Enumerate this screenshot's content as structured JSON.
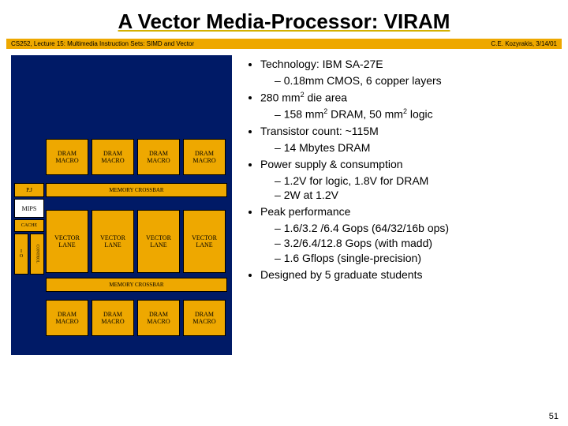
{
  "title": "A Vector Media-Processor: VIRAM",
  "subtitle_left": "CS252, Lecture 15: Multimedia Instruction Sets: SIMD and Vector",
  "subtitle_right": "C.E. Kozyrakis, 3/14/01",
  "diagram": {
    "dram_macro": "DRAM\nMACRO",
    "pj": "P.J",
    "mips": "MIPS",
    "cache": "CACHE",
    "io": "I\nO",
    "control": "CONTROL",
    "memxbar": "MEMORY CROSSBAR",
    "vlane": "VECTOR\nLANE"
  },
  "bullets": {
    "b1": "Technology: IBM SA-27E",
    "b1a": "0.18mm CMOS, 6 copper layers",
    "b2": " 280 mm",
    "b2_sup": "2",
    "b2_tail": " die area",
    "b2a": "158 mm",
    "b2a_sup": "2",
    "b2a_mid": " DRAM, 50 mm",
    "b2a_sup2": "2",
    "b2a_tail": " logic",
    "b3": "Transistor count: ~115M",
    "b3a": "14 Mbytes DRAM",
    "b4": "Power supply & consumption",
    "b4a": "1.2V for logic, 1.8V for DRAM",
    "b4b": "2W at 1.2V",
    "b5": "Peak performance",
    "b5a": "1.6/3.2 /6.4 Gops  (64/32/16b ops)",
    "b5b": "3.2/6.4/12.8 Gops  (with madd)",
    "b5c": "1.6 Gflops (single-precision)",
    "b6": "Designed by 5 graduate students"
  },
  "pagenum": "51"
}
